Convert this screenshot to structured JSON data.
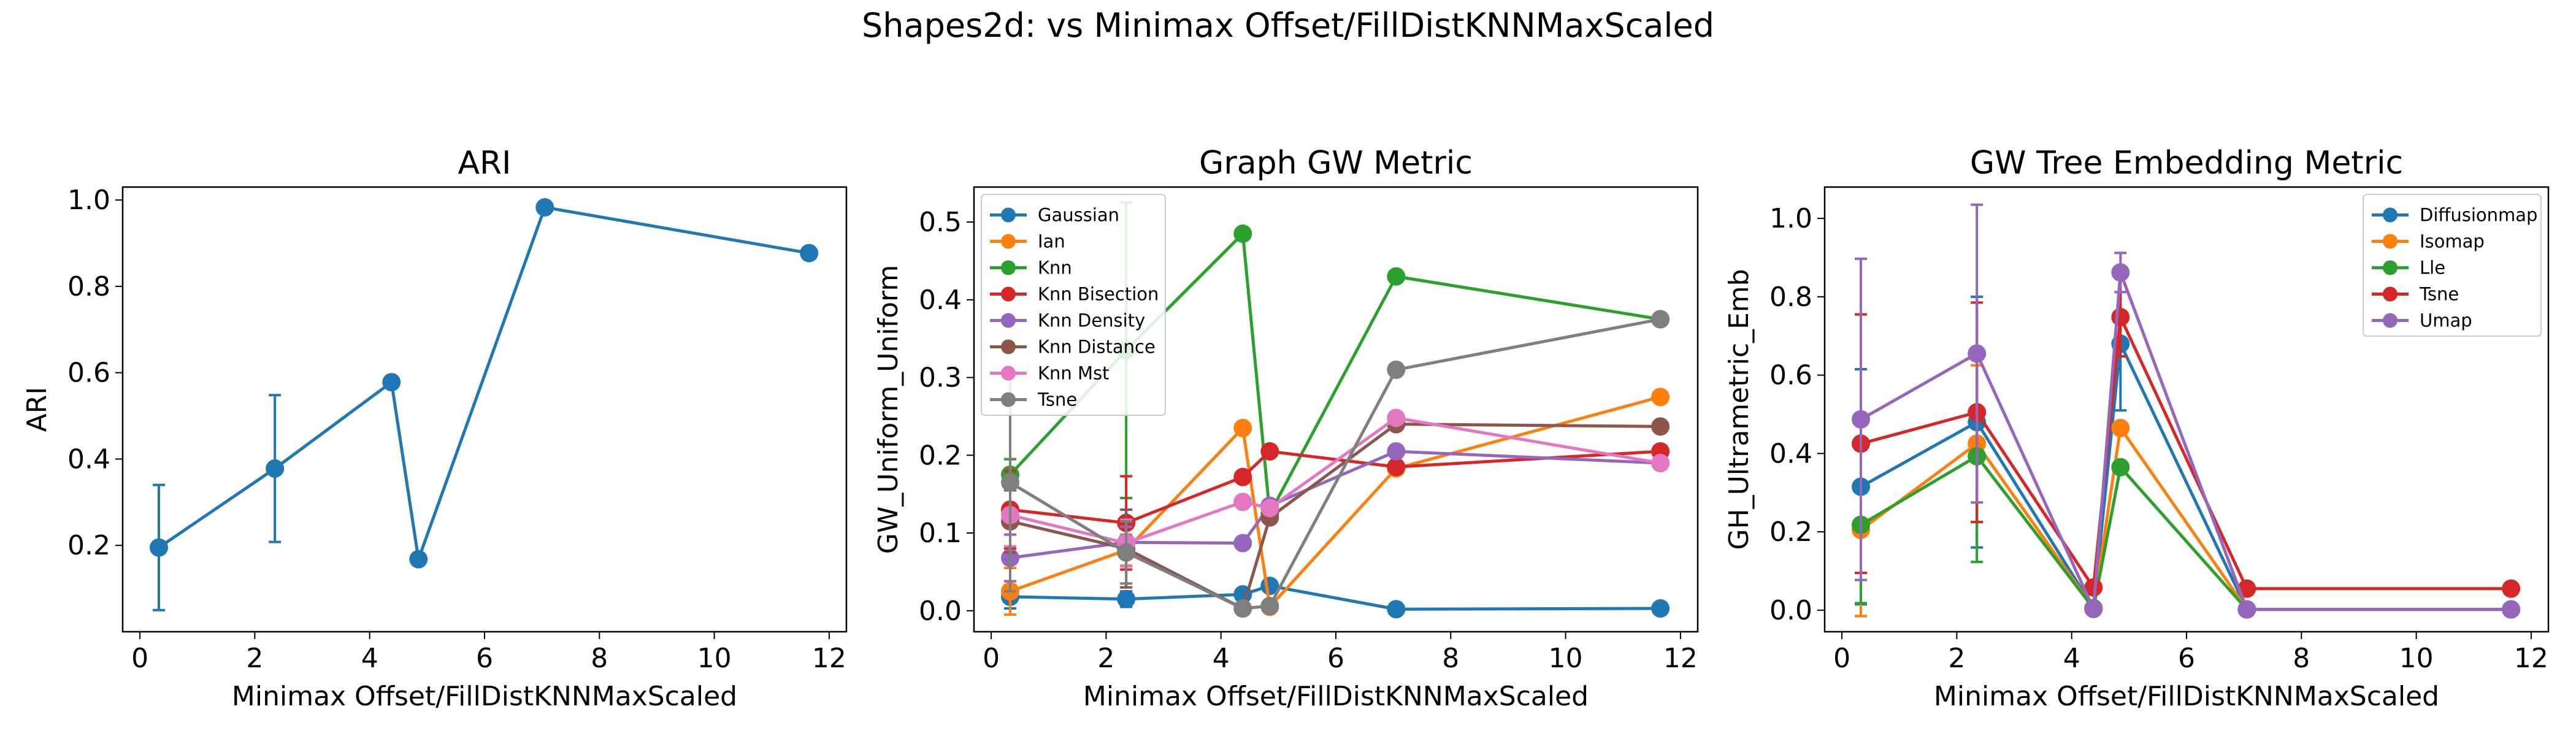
{
  "suptitle": "Shapes2d: vs Minimax Offset/FillDistKNNMaxScaled",
  "chart_data": [
    {
      "type": "line",
      "title": "ARI",
      "xlabel": "Minimax Offset/FillDistKNNMaxScaled",
      "ylabel": "ARI",
      "xlim": [
        -0.3,
        12.3
      ],
      "ylim": [
        0.0,
        1.03
      ],
      "xticks": [
        0,
        2,
        4,
        6,
        8,
        10,
        12
      ],
      "xtick_labels": [
        "0",
        "2",
        "4",
        "6",
        "8",
        "10",
        "12"
      ],
      "yticks": [
        0.2,
        0.4,
        0.6,
        0.8,
        1.0
      ],
      "ytick_labels": [
        "0.2",
        "0.4",
        "0.6",
        "0.8",
        "1.0"
      ],
      "x": [
        0.33,
        2.35,
        4.38,
        4.85,
        7.05,
        11.65
      ],
      "series": [
        {
          "color": "#1f77b4",
          "values": [
            0.195,
            0.378,
            0.578,
            0.168,
            0.983,
            0.877
          ],
          "errors": [
            0.145,
            0.17,
            0,
            0,
            0,
            0
          ]
        }
      ],
      "legend": null
    },
    {
      "type": "line",
      "title": "Graph GW Metric",
      "xlabel": "Minimax Offset/FillDistKNNMaxScaled",
      "ylabel": "GW_Uniform_Uniform",
      "xlim": [
        -0.3,
        12.3
      ],
      "ylim": [
        -0.027,
        0.545
      ],
      "xticks": [
        0,
        2,
        4,
        6,
        8,
        10,
        12
      ],
      "xtick_labels": [
        "0",
        "2",
        "4",
        "6",
        "8",
        "10",
        "12"
      ],
      "yticks": [
        0.0,
        0.1,
        0.2,
        0.3,
        0.4,
        0.5
      ],
      "ytick_labels": [
        "0.0",
        "0.1",
        "0.2",
        "0.3",
        "0.4",
        "0.5"
      ],
      "x": [
        0.33,
        2.35,
        4.38,
        4.85,
        7.05,
        11.65
      ],
      "series": [
        {
          "name": "Gaussian",
          "color": "#1f77b4",
          "values": [
            0.018,
            0.015,
            0.021,
            0.032,
            0.002,
            0.003
          ],
          "errors": [
            0.015,
            0.01,
            0,
            0,
            0,
            0
          ]
        },
        {
          "name": "Ian",
          "color": "#ff7f0e",
          "values": [
            0.025,
            0.078,
            0.235,
            0.005,
            0.183,
            0.275
          ],
          "errors": [
            0.03,
            0.02,
            0,
            0,
            0,
            0
          ]
        },
        {
          "name": "Knn",
          "color": "#2ca02c",
          "values": [
            0.175,
            0.335,
            0.485,
            0.125,
            0.43,
            0.375
          ],
          "errors": [
            0.02,
            0.19,
            0,
            0,
            0,
            0
          ]
        },
        {
          "name": "Knn Bisection",
          "color": "#d62728",
          "values": [
            0.13,
            0.113,
            0.172,
            0.205,
            0.185,
            0.205
          ],
          "errors": [
            0.05,
            0.06,
            0,
            0,
            0,
            0
          ]
        },
        {
          "name": "Knn Density",
          "color": "#9467bd",
          "values": [
            0.068,
            0.088,
            0.087,
            0.135,
            0.205,
            0.19
          ],
          "errors": [
            0.03,
            0.02,
            0,
            0,
            0,
            0
          ]
        },
        {
          "name": "Knn Distance",
          "color": "#8c564b",
          "values": [
            0.115,
            0.08,
            0.003,
            0.12,
            0.24,
            0.237
          ],
          "errors": [
            0.04,
            0.05,
            0,
            0,
            0,
            0
          ]
        },
        {
          "name": "Knn Mst",
          "color": "#e377c2",
          "values": [
            0.123,
            0.087,
            0.14,
            0.132,
            0.248,
            0.19
          ],
          "errors": [
            0.04,
            0.03,
            0,
            0,
            0,
            0
          ]
        },
        {
          "name": "Tsne",
          "color": "#7f7f7f",
          "values": [
            0.165,
            0.075,
            0.003,
            0.006,
            0.31,
            0.375
          ],
          "errors": [
            0.14,
            0.04,
            0,
            0,
            0,
            0
          ]
        }
      ],
      "legend": "upper-left"
    },
    {
      "type": "line",
      "title": "GW Tree Embedding Metric",
      "xlabel": "Minimax Offset/FillDistKNNMaxScaled",
      "ylabel": "GH_Ultrametric_Emb",
      "xlim": [
        -0.3,
        12.3
      ],
      "ylim": [
        -0.055,
        1.08
      ],
      "xticks": [
        0,
        2,
        4,
        6,
        8,
        10,
        12
      ],
      "xtick_labels": [
        "0",
        "2",
        "4",
        "6",
        "8",
        "10",
        "12"
      ],
      "yticks": [
        0.0,
        0.2,
        0.4,
        0.6,
        0.8,
        1.0
      ],
      "ytick_labels": [
        "0.0",
        "0.2",
        "0.4",
        "0.6",
        "0.8",
        "1.0"
      ],
      "x": [
        0.33,
        2.35,
        4.38,
        4.85,
        7.05,
        11.65
      ],
      "series": [
        {
          "name": "Diffusionmap",
          "color": "#1f77b4",
          "values": [
            0.315,
            0.48,
            0.005,
            0.68,
            0.002,
            0.002
          ],
          "errors": [
            0.3,
            0.32,
            0,
            0.17,
            0,
            0
          ]
        },
        {
          "name": "Isomap",
          "color": "#ff7f0e",
          "values": [
            0.205,
            0.425,
            0.005,
            0.465,
            0.002,
            0.002
          ],
          "errors": [
            0.22,
            0.2,
            0,
            0,
            0,
            0
          ]
        },
        {
          "name": "Lle",
          "color": "#2ca02c",
          "values": [
            0.218,
            0.393,
            0.005,
            0.365,
            0.002,
            0.002
          ],
          "errors": [
            0.2,
            0.27,
            0,
            0,
            0,
            0
          ]
        },
        {
          "name": "Tsne",
          "color": "#d62728",
          "values": [
            0.425,
            0.505,
            0.058,
            0.748,
            0.055,
            0.055
          ],
          "errors": [
            0.33,
            0.28,
            0,
            0.1,
            0,
            0
          ]
        },
        {
          "name": "Umap",
          "color": "#9467bd",
          "values": [
            0.487,
            0.655,
            0.003,
            0.862,
            0.002,
            0.002
          ],
          "errors": [
            0.41,
            0.38,
            0,
            0.05,
            0,
            0
          ]
        }
      ],
      "legend": "upper-right"
    }
  ]
}
